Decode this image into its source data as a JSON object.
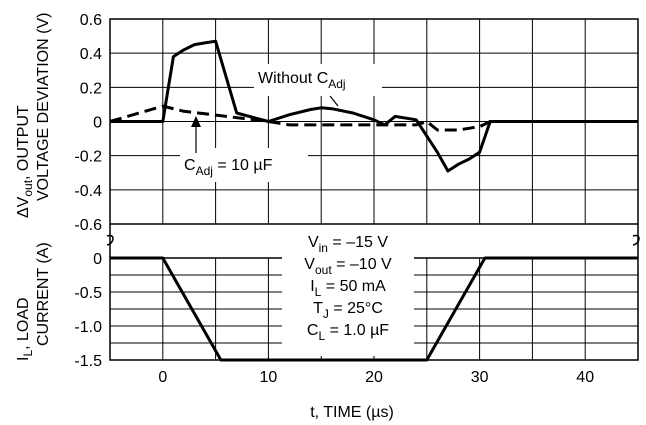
{
  "chart_data": [
    {
      "type": "line",
      "panel": "top",
      "ylabel_line1_prefix": "ΔV",
      "ylabel_line1_sub": "out",
      "ylabel_line1_suffix": ", OUTPUT",
      "ylabel_line2": "VOLTAGE DEVIATION (V)",
      "ylim": [
        -0.6,
        0.6
      ],
      "yticks": [
        "0.6",
        "0.4",
        "0.2",
        "0",
        "-0.2",
        "-0.4",
        "-0.6"
      ],
      "ytick_values": [
        0.6,
        0.4,
        0.2,
        0,
        -0.2,
        -0.4,
        -0.6
      ],
      "xlim": [
        -5,
        45
      ],
      "grid": true,
      "series": [
        {
          "name": "Without C_Adj",
          "style": "solid",
          "x": [
            -5,
            0,
            1,
            2,
            3,
            4,
            5,
            7,
            10,
            12,
            14,
            15,
            16,
            18,
            20,
            21,
            22,
            24,
            26,
            27,
            28,
            29,
            30,
            31,
            45
          ],
          "y": [
            0,
            0,
            0.38,
            0.42,
            0.45,
            0.46,
            0.47,
            0.05,
            0,
            0.04,
            0.07,
            0.08,
            0.075,
            0.05,
            0.01,
            -0.02,
            0.03,
            0.01,
            -0.18,
            -0.29,
            -0.25,
            -0.22,
            -0.18,
            0,
            0
          ]
        },
        {
          "name": "C_Adj = 10 µF",
          "style": "dashed",
          "x": [
            -5,
            0,
            2,
            4,
            6,
            8,
            10,
            12,
            20,
            24,
            25,
            26,
            28,
            29,
            30,
            31,
            45
          ],
          "y": [
            0,
            0.09,
            0.06,
            0.045,
            0.03,
            0.015,
            0,
            -0.02,
            -0.02,
            -0.02,
            0,
            -0.05,
            -0.05,
            -0.04,
            -0.03,
            0,
            0
          ]
        }
      ],
      "annotations": {
        "without_prefix": "Without C",
        "without_sub": "Adj",
        "cadj_prefix": "C",
        "cadj_sub": "Adj",
        "cadj_suffix": " = 10 µF"
      }
    },
    {
      "type": "line",
      "panel": "bottom",
      "ylabel_line1_prefix": "I",
      "ylabel_line1_sub": "L",
      "ylabel_line1_suffix": ", LOAD",
      "ylabel_line2": "CURRENT (A)",
      "ylim": [
        -1.5,
        0
      ],
      "yticks": [
        "0",
        "-0.5",
        "-1.0",
        "-1.5"
      ],
      "ytick_values": [
        0,
        -0.5,
        -1.0,
        -1.5
      ],
      "xlabel": "t, TIME (µs)",
      "xticks": [
        "0",
        "10",
        "20",
        "30",
        "40"
      ],
      "xtick_values": [
        0,
        10,
        20,
        30,
        40
      ],
      "xlim": [
        -5,
        45
      ],
      "grid": true,
      "series": [
        {
          "name": "Load current",
          "style": "solid",
          "x": [
            -5,
            0,
            5.5,
            25,
            30.5,
            45
          ],
          "y": [
            0,
            0,
            -1.5,
            -1.5,
            0,
            0
          ]
        }
      ],
      "conditions": [
        {
          "prefix": "V",
          "sub": "in",
          "suffix": " = –15 V"
        },
        {
          "prefix": "V",
          "sub": "out",
          "suffix": " = –10 V"
        },
        {
          "prefix": "I",
          "sub": "L",
          "suffix": " = 50 mA"
        },
        {
          "prefix": "T",
          "sub": "J",
          "suffix": " = 25°C"
        },
        {
          "prefix": "C",
          "sub": "L",
          "suffix": " = 1.0 µF"
        }
      ]
    }
  ]
}
